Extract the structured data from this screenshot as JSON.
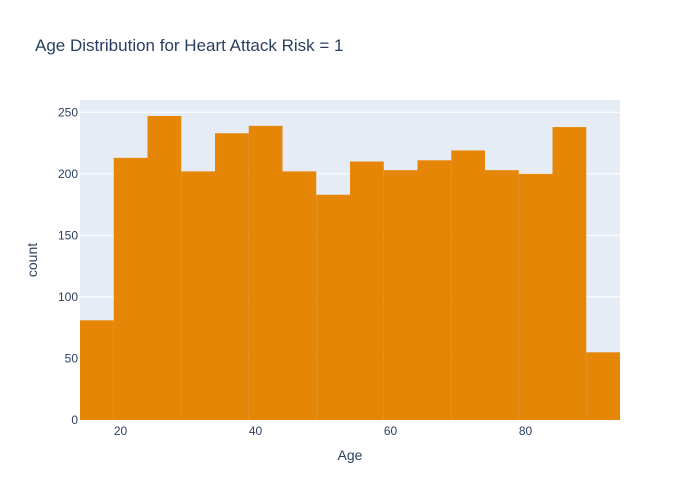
{
  "chart_data": {
    "type": "bar",
    "title": "Age Distribution for Heart Attack Risk = 1",
    "xlabel": "Age",
    "ylabel": "count",
    "bin_edges": [
      14,
      19,
      24,
      29,
      34,
      39,
      44,
      49,
      54,
      59,
      64,
      69,
      74,
      79,
      84,
      89,
      94
    ],
    "values": [
      81,
      213,
      247,
      202,
      233,
      239,
      202,
      183,
      210,
      203,
      211,
      219,
      203,
      200,
      238,
      55
    ],
    "xlim": [
      14,
      94
    ],
    "ylim": [
      0,
      260
    ],
    "xticks": [
      20,
      40,
      60,
      80
    ],
    "xtick_labels": [
      "20",
      "40",
      "60",
      "80"
    ],
    "yticks": [
      0,
      50,
      100,
      150,
      200,
      250
    ],
    "ytick_labels": [
      "0",
      "50",
      "100",
      "150",
      "200",
      "250"
    ],
    "bar_color": "#e58606",
    "plot_background": "#e5ecf6",
    "grid_color": "#ffffff",
    "text_color": "#2a3f5f",
    "grid": true
  }
}
